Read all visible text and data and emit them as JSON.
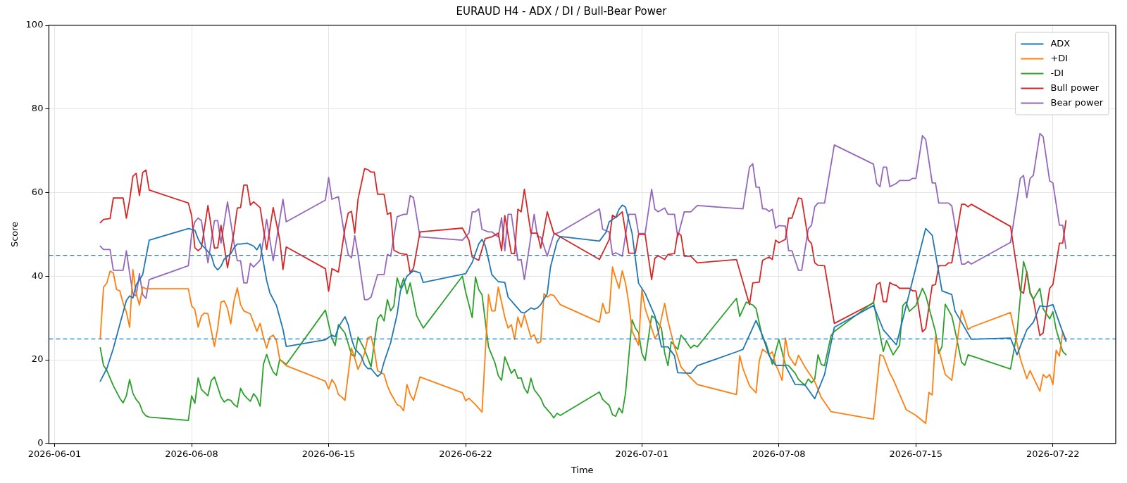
{
  "chart_data": {
    "type": "line",
    "title": "EURAUD H4 - ADX / DI / Bull-Bear Power",
    "xlabel": "Time",
    "ylabel": "Score",
    "xlim": [
      "2026-05-31T17:00",
      "2026-07-25T05:00"
    ],
    "xticks": [
      "2026-06-01",
      "2026-06-08",
      "2026-06-15",
      "2026-06-22",
      "2026-07-01",
      "2026-07-08",
      "2026-07-15",
      "2026-07-22"
    ],
    "ylim": [
      0,
      100
    ],
    "yticks": [
      0,
      20,
      40,
      60,
      80,
      100
    ],
    "grid": true,
    "legend": "top right",
    "ref_lines": [
      {
        "axis": "y",
        "value": 45,
        "line_style": "dashed",
        "color": "#1f77b4"
      },
      {
        "axis": "y",
        "value": 25,
        "line_style": "dashed",
        "color": "#1f77b4"
      }
    ],
    "series": [
      {
        "name": "ADX",
        "color": "#1f77b4",
        "x": [
          "2026-06-03T08:00",
          "2026-06-03T16:00",
          "2026-06-04T00:00",
          "2026-06-04T08:00",
          "2026-06-04T16:00",
          "2026-06-04T20:00",
          "2026-06-05T00:00",
          "2026-06-05T04:00",
          "2026-06-05T12:00",
          "2026-06-05T20:00",
          "2026-06-07T20:00",
          "2026-06-08T04:00",
          "2026-06-08T08:00",
          "2026-06-08T12:00",
          "2026-06-08T16:00",
          "2026-06-09T00:00",
          "2026-06-09T04:00",
          "2026-06-09T08:00",
          "2026-06-09T12:00",
          "2026-06-09T16:00",
          "2026-06-10T00:00",
          "2026-06-10T04:00",
          "2026-06-10T08:00",
          "2026-06-10T12:00",
          "2026-06-10T20:00",
          "2026-06-11T04:00",
          "2026-06-11T08:00",
          "2026-06-11T12:00",
          "2026-06-11T20:00",
          "2026-06-12T00:00",
          "2026-06-12T08:00",
          "2026-06-12T16:00",
          "2026-06-12T20:00",
          "2026-06-14T20:00",
          "2026-06-15T04:00",
          "2026-06-15T08:00",
          "2026-06-15T12:00",
          "2026-06-15T20:00",
          "2026-06-16T00:00",
          "2026-06-16T04:00",
          "2026-06-16T08:00",
          "2026-06-16T16:00",
          "2026-06-16T20:00",
          "2026-06-17T00:00",
          "2026-06-17T04:00",
          "2026-06-17T12:00",
          "2026-06-17T16:00",
          "2026-06-17T20:00",
          "2026-06-18T04:00",
          "2026-06-18T12:00",
          "2026-06-18T16:00",
          "2026-06-19T00:00",
          "2026-06-19T08:00",
          "2026-06-19T16:00",
          "2026-06-19T20:00",
          "2026-06-22T00:00",
          "2026-06-22T04:00",
          "2026-06-22T08:00",
          "2026-06-22T16:00",
          "2026-06-22T20:00",
          "2026-06-23T00:00",
          "2026-06-23T04:00",
          "2026-06-23T08:00",
          "2026-06-23T16:00",
          "2026-06-24T00:00",
          "2026-06-24T04:00",
          "2026-06-24T12:00",
          "2026-06-24T20:00",
          "2026-06-25T00:00",
          "2026-06-25T08:00",
          "2026-06-25T12:00",
          "2026-06-25T16:00",
          "2026-06-25T20:00",
          "2026-06-26T04:00",
          "2026-06-26T08:00",
          "2026-06-26T16:00",
          "2026-06-26T20:00",
          "2026-06-28T20:00",
          "2026-06-29T04:00",
          "2026-06-29T08:00",
          "2026-06-29T16:00",
          "2026-06-29T20:00",
          "2026-06-30T00:00",
          "2026-06-30T04:00",
          "2026-06-30T12:00",
          "2026-06-30T20:00",
          "2026-07-01T04:00",
          "2026-07-01T16:00",
          "2026-07-02T00:00",
          "2026-07-02T08:00",
          "2026-07-02T16:00",
          "2026-07-02T20:00",
          "2026-07-03T12:00",
          "2026-07-03T20:00",
          "2026-07-05T20:00",
          "2026-07-06T04:00",
          "2026-07-06T20:00",
          "2026-07-07T04:00",
          "2026-07-07T12:00",
          "2026-07-07T20:00",
          "2026-07-08T08:00",
          "2026-07-08T20:00",
          "2026-07-09T08:00",
          "2026-07-09T20:00",
          "2026-07-10T08:00",
          "2026-07-10T20:00",
          "2026-07-12T20:00",
          "2026-07-13T08:00",
          "2026-07-14T00:00",
          "2026-07-15T12:00",
          "2026-07-15T20:00",
          "2026-07-16T08:00",
          "2026-07-16T20:00",
          "2026-07-17T00:00",
          "2026-07-17T08:00",
          "2026-07-17T20:00",
          "2026-07-19T20:00",
          "2026-07-20T04:00",
          "2026-07-20T16:00",
          "2026-07-21T00:00",
          "2026-07-21T08:00",
          "2026-07-21T16:00",
          "2026-07-22T00:00",
          "2026-07-22T16:00"
        ],
        "values": [
          14.9,
          17.9,
          22.7,
          28.5,
          34.2,
          35.3,
          34.8,
          37.9,
          40.4,
          48.6,
          51.4,
          51,
          48.9,
          47.5,
          46.8,
          45,
          42.4,
          41.5,
          42.4,
          44.1,
          45.4,
          46.8,
          47.7,
          47.7,
          47.9,
          47.2,
          46.3,
          47.7,
          39,
          36,
          33,
          27.3,
          23.2,
          24.8,
          25.9,
          25.5,
          27.8,
          30.3,
          28.4,
          25,
          22.7,
          20.9,
          18.8,
          17.9,
          17.9,
          16,
          16.7,
          19.5,
          24.1,
          30.9,
          36.5,
          40,
          41.3,
          40.8,
          38.5,
          40.6,
          42,
          43.3,
          47.7,
          48.8,
          47.3,
          44,
          40.4,
          38.7,
          38.5,
          35,
          33.2,
          31.4,
          31.2,
          32.4,
          32.1,
          32.4,
          33.2,
          35.8,
          42.2,
          48.2,
          49.5,
          48.4,
          50.5,
          53,
          54.1,
          56,
          57,
          56.5,
          50.3,
          38.3,
          35.9,
          30.5,
          23.1,
          23.1,
          21,
          16.9,
          16.8,
          18.6,
          21.9,
          22.5,
          29.4,
          25.8,
          21,
          18.7,
          18.6,
          14.1,
          14,
          10.7,
          16.5,
          27.8,
          33,
          27.2,
          23.6,
          51.4,
          49.8,
          36.5,
          35.6,
          31.6,
          29,
          24.9,
          25.2,
          21.2,
          27.2,
          29,
          32.9,
          32.7,
          33.2,
          24.4
        ]
      },
      {
        "name": "+DI",
        "color": "#ff7f0e",
        "x": [
          "2026-06-03T08:00",
          "2026-06-03T12:00",
          "2026-06-03T16:00",
          "2026-06-03T20:00",
          "2026-06-04T00:00",
          "2026-06-04T04:00",
          "2026-06-04T08:00",
          "2026-06-04T12:00",
          "2026-06-04T16:00",
          "2026-06-04T20:00",
          "2026-06-05T00:00",
          "2026-06-05T04:00",
          "2026-06-05T08:00",
          "2026-06-05T12:00",
          "2026-06-05T16:00",
          "2026-06-07T20:00",
          "2026-06-08T00:00",
          "2026-06-08T04:00",
          "2026-06-08T08:00",
          "2026-06-08T12:00",
          "2026-06-08T16:00",
          "2026-06-08T20:00",
          "2026-06-09T04:00",
          "2026-06-09T08:00",
          "2026-06-09T12:00",
          "2026-06-09T16:00",
          "2026-06-09T20:00",
          "2026-06-10T00:00",
          "2026-06-10T04:00",
          "2026-06-10T08:00",
          "2026-06-10T12:00",
          "2026-06-10T16:00",
          "2026-06-11T00:00",
          "2026-06-11T08:00",
          "2026-06-11T12:00",
          "2026-06-11T16:00",
          "2026-06-11T20:00",
          "2026-06-12T00:00",
          "2026-06-12T04:00",
          "2026-06-12T08:00",
          "2026-06-12T12:00",
          "2026-06-12T20:00",
          "2026-06-14T20:00",
          "2026-06-15T00:00",
          "2026-06-15T04:00",
          "2026-06-15T08:00",
          "2026-06-15T12:00",
          "2026-06-15T16:00",
          "2026-06-15T20:00",
          "2026-06-16T04:00",
          "2026-06-16T08:00",
          "2026-06-16T12:00",
          "2026-06-16T16:00",
          "2026-06-16T20:00",
          "2026-06-17T00:00",
          "2026-06-17T04:00",
          "2026-06-17T08:00",
          "2026-06-17T12:00",
          "2026-06-17T20:00",
          "2026-06-18T00:00",
          "2026-06-18T04:00",
          "2026-06-18T12:00",
          "2026-06-18T16:00",
          "2026-06-18T20:00",
          "2026-06-19T00:00",
          "2026-06-19T04:00",
          "2026-06-19T08:00",
          "2026-06-19T16:00",
          "2026-06-21T20:00",
          "2026-06-22T00:00",
          "2026-06-22T04:00",
          "2026-06-22T12:00",
          "2026-06-22T20:00",
          "2026-06-23T04:00",
          "2026-06-23T08:00",
          "2026-06-23T12:00",
          "2026-06-23T16:00",
          "2026-06-24T00:00",
          "2026-06-24T04:00",
          "2026-06-24T08:00",
          "2026-06-24T12:00",
          "2026-06-24T16:00",
          "2026-06-24T20:00",
          "2026-06-25T00:00",
          "2026-06-25T04:00",
          "2026-06-25T08:00",
          "2026-06-25T12:00",
          "2026-06-25T16:00",
          "2026-06-25T20:00",
          "2026-06-26T00:00",
          "2026-06-26T04:00",
          "2026-06-26T08:00",
          "2026-06-26T12:00",
          "2026-06-26T20:00",
          "2026-06-28T20:00",
          "2026-06-29T00:00",
          "2026-06-29T04:00",
          "2026-06-29T08:00",
          "2026-06-29T12:00",
          "2026-06-29T16:00",
          "2026-06-29T20:00",
          "2026-06-30T00:00",
          "2026-06-30T04:00",
          "2026-06-30T08:00",
          "2026-06-30T12:00",
          "2026-06-30T20:00",
          "2026-07-01T00:00",
          "2026-07-01T04:00",
          "2026-07-01T12:00",
          "2026-07-01T16:00",
          "2026-07-01T20:00",
          "2026-07-02T04:00",
          "2026-07-02T08:00",
          "2026-07-02T16:00",
          "2026-07-03T00:00",
          "2026-07-03T08:00",
          "2026-07-03T20:00",
          "2026-07-05T20:00",
          "2026-07-06T00:00",
          "2026-07-06T04:00",
          "2026-07-06T12:00",
          "2026-07-06T20:00",
          "2026-07-07T00:00",
          "2026-07-07T04:00",
          "2026-07-07T12:00",
          "2026-07-07T16:00",
          "2026-07-07T20:00",
          "2026-07-08T00:00",
          "2026-07-08T04:00",
          "2026-07-08T08:00",
          "2026-07-08T12:00",
          "2026-07-08T20:00",
          "2026-07-09T00:00",
          "2026-07-09T08:00",
          "2026-07-09T20:00",
          "2026-07-10T04:00",
          "2026-07-10T16:00",
          "2026-07-12T20:00",
          "2026-07-13T04:00",
          "2026-07-13T08:00",
          "2026-07-13T16:00",
          "2026-07-13T20:00",
          "2026-07-14T12:00",
          "2026-07-15T00:00",
          "2026-07-15T12:00",
          "2026-07-15T16:00",
          "2026-07-15T20:00",
          "2026-07-16T00:00",
          "2026-07-16T12:00",
          "2026-07-16T20:00",
          "2026-07-17T08:00",
          "2026-07-17T16:00",
          "2026-07-17T20:00",
          "2026-07-19T20:00",
          "2026-07-20T08:00",
          "2026-07-20T16:00",
          "2026-07-20T20:00",
          "2026-07-21T08:00",
          "2026-07-21T12:00",
          "2026-07-21T16:00",
          "2026-07-21T20:00",
          "2026-07-22T00:00",
          "2026-07-22T04:00",
          "2026-07-22T08:00",
          "2026-07-22T12:00",
          "2026-07-22T16:00"
        ],
        "values": [
          25.2,
          37.4,
          38.3,
          41.2,
          40.8,
          36.8,
          36.5,
          33.5,
          31.4,
          27.8,
          41.6,
          35.9,
          33.1,
          37.4,
          37,
          37,
          32.9,
          32,
          27.8,
          30.5,
          31.2,
          31,
          23.2,
          27.6,
          33.8,
          34.1,
          32.3,
          28.6,
          34.1,
          37.2,
          33.2,
          31.7,
          31,
          26.8,
          28.7,
          25.4,
          22.8,
          25.4,
          25.9,
          24.6,
          20.1,
          18.6,
          14.9,
          13,
          15.3,
          14.1,
          11.7,
          11.1,
          10.3,
          22.8,
          20.4,
          17.7,
          19.5,
          21.6,
          25.2,
          25.6,
          22.3,
          17.4,
          16.5,
          13.8,
          12,
          9.3,
          8.9,
          7.8,
          14.1,
          11.7,
          10.3,
          15.9,
          12.1,
          10.2,
          10.8,
          9.3,
          7.5,
          35.6,
          31.7,
          31.7,
          37.4,
          30.2,
          27.6,
          28.4,
          24.9,
          30.2,
          27.8,
          30.8,
          28.1,
          25.4,
          26,
          24,
          24.3,
          35.8,
          35,
          35.6,
          35.4,
          33.2,
          29,
          33.5,
          31.1,
          31.4,
          42.2,
          39.5,
          37.1,
          41.3,
          38.3,
          33.5,
          26.9,
          23.5,
          36.8,
          32.3,
          27.6,
          25.2,
          26.3,
          33.5,
          29.3,
          23.1,
          18.3,
          16.5,
          14.1,
          11.7,
          21,
          17.9,
          13.8,
          12.1,
          19.8,
          22.5,
          21.3,
          21.9,
          18.9,
          17.1,
          15.1,
          25.2,
          21,
          18.6,
          21.1,
          18.3,
          14.8,
          11,
          7.6,
          5.8,
          21.2,
          20.9,
          16.8,
          15.4,
          8.1,
          6.7,
          4.8,
          12.2,
          11.6,
          25.5,
          16.5,
          15.1,
          31.9,
          27.2,
          27.8,
          31.3,
          20.3,
          15.5,
          17.4,
          12.5,
          16.5,
          15.7,
          16.5,
          14.1,
          22.3,
          20.9,
          26.7,
          24.9
        ]
      },
      {
        "name": "-DI",
        "color": "#2ca02c",
        "x": [
          "2026-06-03T08:00",
          "2026-06-03T12:00",
          "2026-06-03T16:00",
          "2026-06-04T00:00",
          "2026-06-04T08:00",
          "2026-06-04T12:00",
          "2026-06-04T16:00",
          "2026-06-04T20:00",
          "2026-06-05T00:00",
          "2026-06-05T04:00",
          "2026-06-05T08:00",
          "2026-06-05T12:00",
          "2026-06-05T16:00",
          "2026-06-05T20:00",
          "2026-06-07T20:00",
          "2026-06-08T00:00",
          "2026-06-08T04:00",
          "2026-06-08T08:00",
          "2026-06-08T12:00",
          "2026-06-08T20:00",
          "2026-06-09T00:00",
          "2026-06-09T04:00",
          "2026-06-09T12:00",
          "2026-06-09T16:00",
          "2026-06-09T20:00",
          "2026-06-10T00:00",
          "2026-06-10T04:00",
          "2026-06-10T08:00",
          "2026-06-10T12:00",
          "2026-06-10T16:00",
          "2026-06-10T20:00",
          "2026-06-11T00:00",
          "2026-06-11T04:00",
          "2026-06-11T08:00",
          "2026-06-11T12:00",
          "2026-06-11T16:00",
          "2026-06-11T20:00",
          "2026-06-12T00:00",
          "2026-06-12T04:00",
          "2026-06-12T08:00",
          "2026-06-12T12:00",
          "2026-06-12T20:00",
          "2026-06-14T20:00",
          "2026-06-15T04:00",
          "2026-06-15T08:00",
          "2026-06-15T12:00",
          "2026-06-15T20:00",
          "2026-06-16T04:00",
          "2026-06-16T08:00",
          "2026-06-16T12:00",
          "2026-06-16T20:00",
          "2026-06-17T04:00",
          "2026-06-17T12:00",
          "2026-06-17T16:00",
          "2026-06-17T20:00",
          "2026-06-18T00:00",
          "2026-06-18T04:00",
          "2026-06-18T08:00",
          "2026-06-18T12:00",
          "2026-06-18T16:00",
          "2026-06-18T20:00",
          "2026-06-19T00:00",
          "2026-06-19T04:00",
          "2026-06-19T12:00",
          "2026-06-19T20:00",
          "2026-06-21T20:00",
          "2026-06-22T00:00",
          "2026-06-22T08:00",
          "2026-06-22T12:00",
          "2026-06-22T16:00",
          "2026-06-22T20:00",
          "2026-06-23T04:00",
          "2026-06-23T12:00",
          "2026-06-23T16:00",
          "2026-06-23T20:00",
          "2026-06-24T00:00",
          "2026-06-24T08:00",
          "2026-06-24T12:00",
          "2026-06-24T16:00",
          "2026-06-24T20:00",
          "2026-06-25T00:00",
          "2026-06-25T04:00",
          "2026-06-25T08:00",
          "2026-06-25T12:00",
          "2026-06-25T20:00",
          "2026-06-26T00:00",
          "2026-06-26T08:00",
          "2026-06-26T12:00",
          "2026-06-26T16:00",
          "2026-06-26T20:00",
          "2026-06-28T20:00",
          "2026-06-29T00:00",
          "2026-06-29T08:00",
          "2026-06-29T12:00",
          "2026-06-29T16:00",
          "2026-06-29T20:00",
          "2026-06-30T00:00",
          "2026-06-30T04:00",
          "2026-06-30T12:00",
          "2026-06-30T16:00",
          "2026-06-30T20:00",
          "2026-07-01T00:00",
          "2026-07-01T04:00",
          "2026-07-01T12:00",
          "2026-07-01T16:00",
          "2026-07-02T00:00",
          "2026-07-02T04:00",
          "2026-07-02T08:00",
          "2026-07-02T12:00",
          "2026-07-02T20:00",
          "2026-07-03T00:00",
          "2026-07-03T04:00",
          "2026-07-03T12:00",
          "2026-07-03T16:00",
          "2026-07-03T20:00",
          "2026-07-05T20:00",
          "2026-07-06T00:00",
          "2026-07-06T08:00",
          "2026-07-06T16:00",
          "2026-07-06T20:00",
          "2026-07-07T04:00",
          "2026-07-07T08:00",
          "2026-07-07T16:00",
          "2026-07-08T00:00",
          "2026-07-08T08:00",
          "2026-07-08T12:00",
          "2026-07-08T20:00",
          "2026-07-09T00:00",
          "2026-07-09T08:00",
          "2026-07-09T12:00",
          "2026-07-09T16:00",
          "2026-07-09T20:00",
          "2026-07-10T00:00",
          "2026-07-10T04:00",
          "2026-07-10T08:00",
          "2026-07-10T16:00",
          "2026-07-10T20:00",
          "2026-07-12T20:00",
          "2026-07-13T08:00",
          "2026-07-13T12:00",
          "2026-07-13T20:00",
          "2026-07-14T04:00",
          "2026-07-14T08:00",
          "2026-07-14T12:00",
          "2026-07-14T16:00",
          "2026-07-15T00:00",
          "2026-07-15T08:00",
          "2026-07-15T12:00",
          "2026-07-15T20:00",
          "2026-07-16T00:00",
          "2026-07-16T04:00",
          "2026-07-16T08:00",
          "2026-07-16T12:00",
          "2026-07-16T20:00",
          "2026-07-17T00:00",
          "2026-07-17T08:00",
          "2026-07-17T12:00",
          "2026-07-17T16:00",
          "2026-07-19T20:00",
          "2026-07-20T04:00",
          "2026-07-20T12:00",
          "2026-07-20T16:00",
          "2026-07-20T20:00",
          "2026-07-21T00:00",
          "2026-07-21T08:00",
          "2026-07-21T12:00",
          "2026-07-21T20:00",
          "2026-07-22T00:00",
          "2026-07-22T04:00",
          "2026-07-22T12:00",
          "2026-07-22T16:00"
        ],
        "values": [
          22.9,
          18.6,
          17.5,
          13.8,
          10.8,
          9.7,
          11.4,
          15.3,
          12,
          10.5,
          9.6,
          7.5,
          6.6,
          6.3,
          5.5,
          11.4,
          9.6,
          15.7,
          12.9,
          11.4,
          15,
          15.9,
          11.1,
          9.9,
          10.5,
          10.3,
          9.3,
          8.7,
          13.2,
          11.7,
          10.8,
          10.1,
          11.9,
          10.9,
          8.9,
          18.9,
          21.3,
          18.9,
          17.1,
          16.3,
          20.1,
          18.9,
          31.9,
          25.2,
          23.4,
          28.4,
          26.4,
          21.3,
          20.7,
          25.4,
          22.5,
          18.3,
          29.8,
          30.8,
          29.3,
          34.4,
          31.7,
          32.9,
          39.6,
          37.2,
          39.5,
          35.8,
          38.4,
          30.5,
          27.6,
          40,
          36.2,
          30.1,
          39.8,
          36.8,
          35.6,
          23.1,
          19.2,
          16.2,
          15.1,
          20.7,
          16.8,
          17.7,
          15.6,
          15.7,
          13.2,
          12,
          15.6,
          12.9,
          10.8,
          9,
          7.2,
          6.1,
          7.2,
          6.7,
          12.3,
          10.5,
          9.1,
          6.9,
          6.5,
          8.5,
          7.3,
          12,
          29.6,
          27.6,
          26.5,
          21.6,
          19.8,
          30.5,
          30,
          27.6,
          21.6,
          18.6,
          24.3,
          22.5,
          25.9,
          25,
          22.8,
          23.5,
          23.1,
          34.7,
          30.4,
          33.8,
          33.1,
          32.3,
          25.2,
          24.1,
          18.9,
          24.9,
          18.8,
          18.6,
          16.8,
          15.3,
          13.9,
          15.4,
          14.5,
          15.4,
          21.2,
          18.9,
          18.6,
          25.8,
          26.8,
          33.8,
          22,
          24.6,
          21.2,
          23.5,
          33,
          33.8,
          31.6,
          33,
          37.1,
          35.4,
          29.6,
          26.7,
          21.5,
          23.2,
          33.3,
          30.5,
          27,
          19.4,
          18.7,
          21.2,
          17.8,
          26.4,
          43.5,
          40.9,
          35.9,
          34.5,
          37.1,
          32.2,
          29.8,
          31.5,
          27.2,
          22,
          21.2
        ]
      },
      {
        "name": "Bull power",
        "color": "#d62728",
        "x": [
          "2026-06-03T08:00",
          "2026-06-03T12:00",
          "2026-06-03T20:00",
          "2026-06-04T00:00",
          "2026-06-04T12:00",
          "2026-06-04T16:00",
          "2026-06-04T20:00",
          "2026-06-05T00:00",
          "2026-06-05T04:00",
          "2026-06-05T08:00",
          "2026-06-05T12:00",
          "2026-06-05T16:00",
          "2026-06-05T20:00",
          "2026-06-07T20:00",
          "2026-06-08T00:00",
          "2026-06-08T04:00",
          "2026-06-08T08:00",
          "2026-06-08T12:00",
          "2026-06-08T20:00",
          "2026-06-09T04:00",
          "2026-06-09T08:00",
          "2026-06-09T12:00",
          "2026-06-09T20:00",
          "2026-06-10T04:00",
          "2026-06-10T08:00",
          "2026-06-10T12:00",
          "2026-06-10T16:00",
          "2026-06-10T20:00",
          "2026-06-11T00:00",
          "2026-06-11T04:00",
          "2026-06-11T12:00",
          "2026-06-11T20:00",
          "2026-06-12T04:00",
          "2026-06-12T12:00",
          "2026-06-12T16:00",
          "2026-06-12T20:00",
          "2026-06-14T20:00",
          "2026-06-15T00:00",
          "2026-06-15T04:00",
          "2026-06-15T12:00",
          "2026-06-15T20:00",
          "2026-06-16T00:00",
          "2026-06-16T04:00",
          "2026-06-16T08:00",
          "2026-06-16T12:00",
          "2026-06-16T20:00",
          "2026-06-17T00:00",
          "2026-06-17T04:00",
          "2026-06-17T08:00",
          "2026-06-17T12:00",
          "2026-06-17T20:00",
          "2026-06-18T00:00",
          "2026-06-18T04:00",
          "2026-06-18T08:00",
          "2026-06-18T16:00",
          "2026-06-19T00:00",
          "2026-06-19T04:00",
          "2026-06-19T08:00",
          "2026-06-19T16:00",
          "2026-06-21T20:00",
          "2026-06-22T04:00",
          "2026-06-22T08:00",
          "2026-06-22T16:00",
          "2026-06-23T00:00",
          "2026-06-23T08:00",
          "2026-06-23T16:00",
          "2026-06-23T20:00",
          "2026-06-24T00:00",
          "2026-06-24T08:00",
          "2026-06-24T12:00",
          "2026-06-24T16:00",
          "2026-06-24T20:00",
          "2026-06-25T00:00",
          "2026-06-25T08:00",
          "2026-06-25T16:00",
          "2026-06-25T20:00",
          "2026-06-26T04:00",
          "2026-06-26T12:00",
          "2026-06-26T20:00",
          "2026-06-28T20:00",
          "2026-06-29T08:00",
          "2026-06-29T12:00",
          "2026-06-29T16:00",
          "2026-06-30T00:00",
          "2026-06-30T08:00",
          "2026-06-30T16:00",
          "2026-06-30T20:00",
          "2026-07-01T04:00",
          "2026-07-01T12:00",
          "2026-07-01T16:00",
          "2026-07-01T20:00",
          "2026-07-02T04:00",
          "2026-07-02T08:00",
          "2026-07-02T16:00",
          "2026-07-02T20:00",
          "2026-07-03T00:00",
          "2026-07-03T04:00",
          "2026-07-03T12:00",
          "2026-07-03T20:00",
          "2026-07-05T20:00",
          "2026-07-06T12:00",
          "2026-07-06T16:00",
          "2026-07-07T00:00",
          "2026-07-07T04:00",
          "2026-07-07T12:00",
          "2026-07-07T16:00",
          "2026-07-07T20:00",
          "2026-07-08T00:00",
          "2026-07-08T08:00",
          "2026-07-08T12:00",
          "2026-07-08T16:00",
          "2026-07-09T00:00",
          "2026-07-09T04:00",
          "2026-07-09T12:00",
          "2026-07-09T16:00",
          "2026-07-09T20:00",
          "2026-07-10T00:00",
          "2026-07-10T08:00",
          "2026-07-10T20:00",
          "2026-07-12T20:00",
          "2026-07-13T00:00",
          "2026-07-13T04:00",
          "2026-07-13T08:00",
          "2026-07-13T12:00",
          "2026-07-13T16:00",
          "2026-07-13T20:00",
          "2026-07-14T00:00",
          "2026-07-14T04:00",
          "2026-07-14T16:00",
          "2026-07-14T20:00",
          "2026-07-15T00:00",
          "2026-07-15T08:00",
          "2026-07-15T12:00",
          "2026-07-15T20:00",
          "2026-07-16T00:00",
          "2026-07-16T04:00",
          "2026-07-16T12:00",
          "2026-07-16T16:00",
          "2026-07-16T20:00",
          "2026-07-17T08:00",
          "2026-07-17T12:00",
          "2026-07-17T16:00",
          "2026-07-17T20:00",
          "2026-07-19T20:00",
          "2026-07-20T08:00",
          "2026-07-20T12:00",
          "2026-07-20T16:00",
          "2026-07-20T20:00",
          "2026-07-21T00:00",
          "2026-07-21T08:00",
          "2026-07-21T12:00",
          "2026-07-21T20:00",
          "2026-07-22T00:00",
          "2026-07-22T08:00",
          "2026-07-22T12:00",
          "2026-07-22T16:00"
        ],
        "values": [
          52.8,
          53.6,
          53.8,
          58.7,
          58.7,
          53.9,
          58.2,
          63.9,
          64.6,
          59.3,
          64.8,
          65.4,
          60.6,
          57.5,
          54.5,
          46.8,
          46.1,
          46.8,
          56.9,
          46.7,
          46.8,
          52.2,
          42,
          50.6,
          56.3,
          56.4,
          61.8,
          61.8,
          57,
          57.8,
          56.4,
          46.4,
          56.4,
          48.8,
          41.6,
          47,
          41.8,
          36.4,
          41.8,
          41,
          51.5,
          55.1,
          55.5,
          50.3,
          58.4,
          65.7,
          65.5,
          64.9,
          64.9,
          59.6,
          59.6,
          54.8,
          55.2,
          46.2,
          45.4,
          45.2,
          40.8,
          41.9,
          50.6,
          51.5,
          48.6,
          44.6,
          43.8,
          49,
          49.4,
          50.3,
          46.1,
          54.5,
          45.4,
          45.4,
          56,
          55.4,
          60.8,
          50.3,
          50.3,
          46.7,
          55.4,
          50.3,
          49.4,
          44,
          48.8,
          54.6,
          54,
          55.4,
          45.5,
          45.5,
          50,
          50,
          39.2,
          44.3,
          44.9,
          44,
          45.2,
          45.4,
          50.3,
          49.8,
          44.8,
          44.8,
          43.2,
          44,
          33.2,
          38.4,
          38.6,
          43.8,
          44.6,
          44,
          48.6,
          48,
          48.8,
          53.9,
          53.9,
          58.7,
          58.5,
          48.7,
          47.8,
          43.2,
          42.6,
          42.5,
          28.7,
          33.6,
          38,
          38.5,
          33.9,
          33.9,
          38.5,
          38,
          37.8,
          37.1,
          37.1,
          36.5,
          36.5,
          26.7,
          27.5,
          37.8,
          38,
          42.5,
          42.5,
          43.2,
          43.2,
          57.2,
          57.2,
          56.6,
          57.2,
          51.9,
          36.5,
          35.9,
          41.1,
          36.2,
          34.5,
          25.8,
          26.4,
          37.1,
          38,
          47.9,
          47.9,
          53.3
        ]
      },
      {
        "name": "Bear power",
        "color": "#9467bd",
        "x": [
          "2026-06-03T08:00",
          "2026-06-03T12:00",
          "2026-06-03T20:00",
          "2026-06-04T00:00",
          "2026-06-04T12:00",
          "2026-06-04T16:00",
          "2026-06-04T20:00",
          "2026-06-05T00:00",
          "2026-06-05T04:00",
          "2026-06-05T08:00",
          "2026-06-05T12:00",
          "2026-06-05T16:00",
          "2026-06-05T20:00",
          "2026-06-07T20:00",
          "2026-06-08T00:00",
          "2026-06-08T04:00",
          "2026-06-08T08:00",
          "2026-06-08T12:00",
          "2026-06-08T20:00",
          "2026-06-09T04:00",
          "2026-06-09T08:00",
          "2026-06-09T12:00",
          "2026-06-09T20:00",
          "2026-06-10T04:00",
          "2026-06-10T08:00",
          "2026-06-10T12:00",
          "2026-06-10T16:00",
          "2026-06-10T20:00",
          "2026-06-11T00:00",
          "2026-06-11T04:00",
          "2026-06-11T12:00",
          "2026-06-11T20:00",
          "2026-06-12T04:00",
          "2026-06-12T16:00",
          "2026-06-12T20:00",
          "2026-06-14T20:00",
          "2026-06-15T00:00",
          "2026-06-15T04:00",
          "2026-06-15T12:00",
          "2026-06-15T20:00",
          "2026-06-16T00:00",
          "2026-06-16T04:00",
          "2026-06-16T08:00",
          "2026-06-16T12:00",
          "2026-06-16T20:00",
          "2026-06-17T00:00",
          "2026-06-17T04:00",
          "2026-06-17T12:00",
          "2026-06-17T20:00",
          "2026-06-18T00:00",
          "2026-06-18T04:00",
          "2026-06-18T12:00",
          "2026-06-18T20:00",
          "2026-06-19T00:00",
          "2026-06-19T04:00",
          "2026-06-19T08:00",
          "2026-06-19T16:00",
          "2026-06-21T20:00",
          "2026-06-22T04:00",
          "2026-06-22T08:00",
          "2026-06-22T12:00",
          "2026-06-22T16:00",
          "2026-06-22T20:00",
          "2026-06-23T04:00",
          "2026-06-23T08:00",
          "2026-06-23T16:00",
          "2026-06-23T20:00",
          "2026-06-24T00:00",
          "2026-06-24T04:00",
          "2026-06-24T08:00",
          "2026-06-24T16:00",
          "2026-06-24T20:00",
          "2026-06-25T00:00",
          "2026-06-25T12:00",
          "2026-06-25T16:00",
          "2026-06-25T20:00",
          "2026-06-26T04:00",
          "2026-06-26T12:00",
          "2026-06-26T20:00",
          "2026-06-28T20:00",
          "2026-06-29T00:00",
          "2026-06-29T08:00",
          "2026-06-29T12:00",
          "2026-06-29T16:00",
          "2026-06-30T00:00",
          "2026-06-30T08:00",
          "2026-06-30T16:00",
          "2026-06-30T20:00",
          "2026-07-01T04:00",
          "2026-07-01T12:00",
          "2026-07-01T16:00",
          "2026-07-01T20:00",
          "2026-07-02T04:00",
          "2026-07-02T08:00",
          "2026-07-02T16:00",
          "2026-07-02T20:00",
          "2026-07-03T04:00",
          "2026-07-03T12:00",
          "2026-07-03T20:00",
          "2026-07-06T04:00",
          "2026-07-06T12:00",
          "2026-07-06T16:00",
          "2026-07-06T20:00",
          "2026-07-07T00:00",
          "2026-07-07T04:00",
          "2026-07-07T08:00",
          "2026-07-07T12:00",
          "2026-07-07T16:00",
          "2026-07-07T20:00",
          "2026-07-08T00:00",
          "2026-07-08T08:00",
          "2026-07-08T12:00",
          "2026-07-08T16:00",
          "2026-07-09T00:00",
          "2026-07-09T04:00",
          "2026-07-09T12:00",
          "2026-07-09T16:00",
          "2026-07-09T20:00",
          "2026-07-10T00:00",
          "2026-07-10T08:00",
          "2026-07-10T20:00",
          "2026-07-12T20:00",
          "2026-07-13T00:00",
          "2026-07-13T04:00",
          "2026-07-13T08:00",
          "2026-07-13T12:00",
          "2026-07-13T16:00",
          "2026-07-14T00:00",
          "2026-07-14T04:00",
          "2026-07-14T16:00",
          "2026-07-14T20:00",
          "2026-07-15T00:00",
          "2026-07-15T08:00",
          "2026-07-15T12:00",
          "2026-07-15T20:00",
          "2026-07-16T00:00",
          "2026-07-16T04:00",
          "2026-07-16T16:00",
          "2026-07-16T20:00",
          "2026-07-17T08:00",
          "2026-07-17T12:00",
          "2026-07-17T16:00",
          "2026-07-17T20:00",
          "2026-07-19T20:00",
          "2026-07-20T08:00",
          "2026-07-20T12:00",
          "2026-07-20T16:00",
          "2026-07-20T20:00",
          "2026-07-21T00:00",
          "2026-07-21T08:00",
          "2026-07-21T12:00",
          "2026-07-21T20:00",
          "2026-07-22T00:00",
          "2026-07-22T08:00",
          "2026-07-22T12:00",
          "2026-07-22T16:00"
        ],
        "values": [
          47.2,
          46.4,
          46.4,
          41.4,
          41.4,
          46.1,
          40.7,
          35.8,
          35.3,
          40.6,
          35.6,
          34.7,
          39.2,
          42.5,
          50,
          53,
          53.9,
          53.3,
          43.2,
          53.3,
          53.3,
          47.9,
          57.8,
          47.9,
          43.7,
          43.7,
          38.4,
          38.4,
          43.1,
          42.2,
          43.8,
          53.6,
          43.7,
          58.4,
          53,
          58.2,
          63.6,
          58.4,
          59,
          49.1,
          45.2,
          44.4,
          49.7,
          45.2,
          34.4,
          34.4,
          35,
          40.4,
          40.4,
          45.2,
          44.8,
          54.2,
          54.8,
          54.8,
          59.3,
          58.8,
          49.4,
          48.6,
          50.3,
          55.4,
          55.4,
          56.1,
          51.2,
          50.6,
          50.6,
          49.4,
          54,
          46.1,
          54.8,
          54.8,
          43.8,
          44,
          39.2,
          54.8,
          49.4,
          49.4,
          44.8,
          50,
          50.6,
          56.1,
          51.2,
          50.6,
          45.2,
          45.6,
          44.8,
          54.8,
          54.8,
          50.2,
          50.2,
          60.8,
          56,
          55.4,
          56.3,
          54.8,
          54.8,
          49.4,
          55.4,
          55.4,
          56.9,
          56.1,
          66.1,
          66.9,
          61.3,
          61.3,
          56.1,
          56.1,
          55.5,
          56,
          51.5,
          52.1,
          52,
          46.1,
          46.1,
          41.4,
          41.4,
          51.3,
          52.2,
          56.6,
          57.5,
          57.5,
          71.4,
          66.8,
          62.2,
          61.4,
          66.1,
          66.1,
          61.4,
          62.2,
          62.9,
          62.9,
          63.4,
          63.4,
          73.6,
          72.7,
          62.3,
          62.3,
          57.5,
          57.5,
          56.8,
          42.9,
          42.9,
          43.5,
          42.9,
          48.1,
          63.4,
          64.1,
          58.8,
          63.4,
          64.1,
          74.1,
          73.4,
          62.8,
          62.3,
          52.2,
          52.2,
          46.6
        ]
      }
    ]
  }
}
